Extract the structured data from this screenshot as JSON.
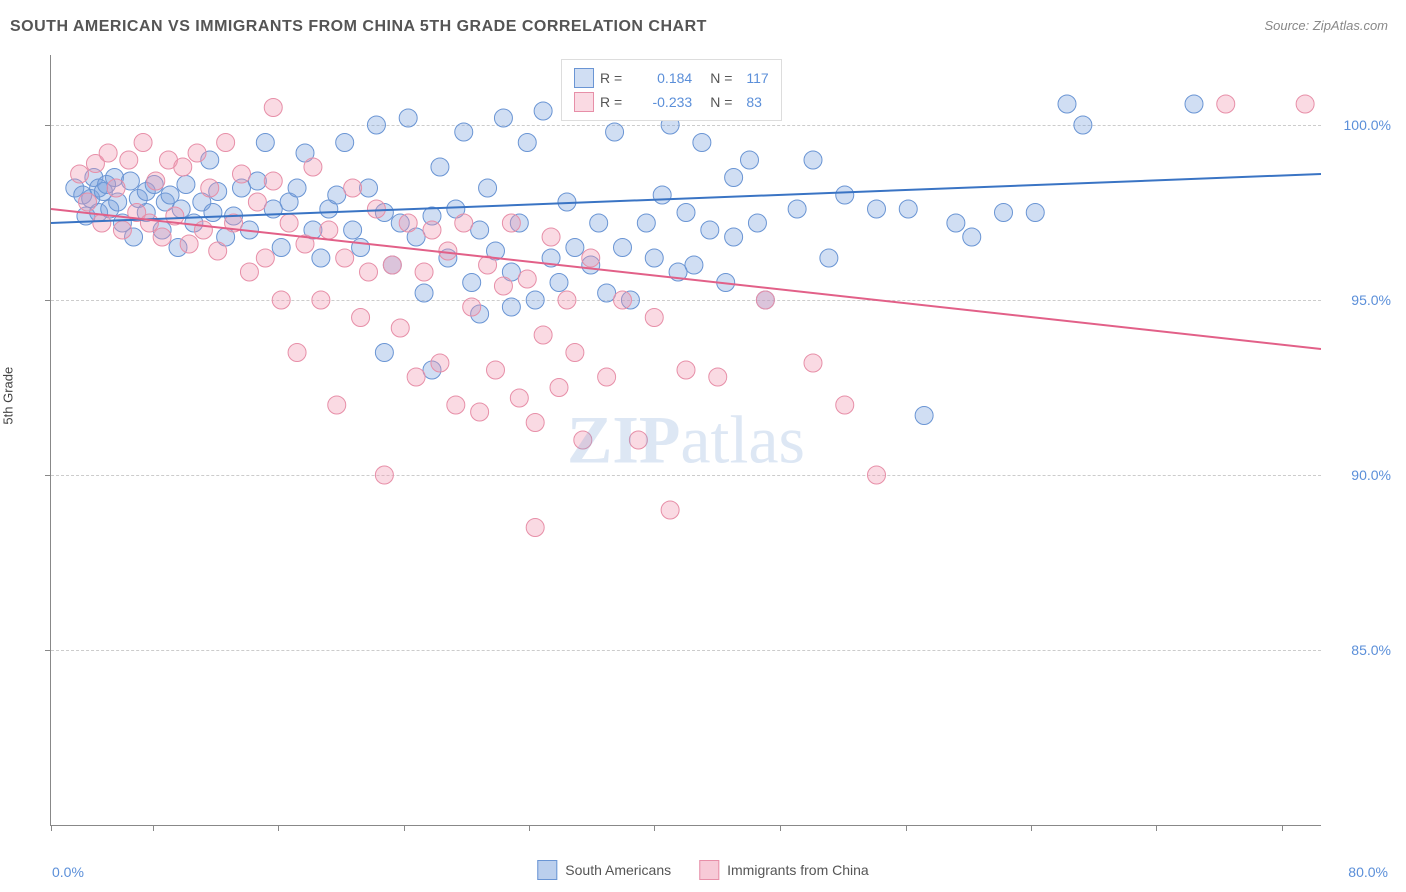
{
  "chart": {
    "type": "scatter",
    "title": "SOUTH AMERICAN VS IMMIGRANTS FROM CHINA 5TH GRADE CORRELATION CHART",
    "source": "Source: ZipAtlas.com",
    "y_axis_label": "5th Grade",
    "watermark": "ZIPatlas",
    "background_color": "#ffffff",
    "grid_color": "#cccccc",
    "axis_color": "#888888",
    "x_axis": {
      "min": 0.0,
      "max": 80.0,
      "tick_positions_pct": [
        0,
        8.0,
        17.9,
        27.8,
        37.6,
        47.5,
        57.4,
        67.3,
        77.2,
        87.0,
        96.9
      ],
      "start_label": "0.0%",
      "end_label": "80.0%",
      "label_color": "#5b8fd9",
      "label_fontsize": 14
    },
    "y_axis": {
      "min": 80.0,
      "max": 102.0,
      "ticks": [
        {
          "value": 100.0,
          "label": "100.0%",
          "pos_pct": 9.1
        },
        {
          "value": 95.0,
          "label": "95.0%",
          "pos_pct": 31.8
        },
        {
          "value": 90.0,
          "label": "90.0%",
          "pos_pct": 54.5
        },
        {
          "value": 85.0,
          "label": "85.0%",
          "pos_pct": 77.3
        }
      ],
      "label_color": "#5b8fd9",
      "label_fontsize": 14
    },
    "series": [
      {
        "name": "South Americans",
        "fill_color": "rgba(120,160,220,0.35)",
        "stroke_color": "#6a95d4",
        "line_color": "#3a74c4",
        "line_width": 2,
        "marker_radius": 9,
        "R": "0.184",
        "N": "117",
        "trend": {
          "y_at_xmin": 97.2,
          "y_at_xmax": 98.6
        },
        "points": [
          [
            1.5,
            98.2
          ],
          [
            2.0,
            98.0
          ],
          [
            2.2,
            97.4
          ],
          [
            2.5,
            97.9
          ],
          [
            2.7,
            98.5
          ],
          [
            3.0,
            98.2
          ],
          [
            3.0,
            97.5
          ],
          [
            3.3,
            98.1
          ],
          [
            3.5,
            98.3
          ],
          [
            3.7,
            97.6
          ],
          [
            4.0,
            98.5
          ],
          [
            4.2,
            97.8
          ],
          [
            4.5,
            97.2
          ],
          [
            5.0,
            98.4
          ],
          [
            5.2,
            96.8
          ],
          [
            5.5,
            97.9
          ],
          [
            6.0,
            98.1
          ],
          [
            6.0,
            97.5
          ],
          [
            6.5,
            98.3
          ],
          [
            7.0,
            97.0
          ],
          [
            7.2,
            97.8
          ],
          [
            7.5,
            98.0
          ],
          [
            8.0,
            96.5
          ],
          [
            8.2,
            97.6
          ],
          [
            8.5,
            98.3
          ],
          [
            9.0,
            97.2
          ],
          [
            9.5,
            97.8
          ],
          [
            10.0,
            99.0
          ],
          [
            10.2,
            97.5
          ],
          [
            10.5,
            98.1
          ],
          [
            11.0,
            96.8
          ],
          [
            11.5,
            97.4
          ],
          [
            12.0,
            98.2
          ],
          [
            12.5,
            97.0
          ],
          [
            13.0,
            98.4
          ],
          [
            13.5,
            99.5
          ],
          [
            14.0,
            97.6
          ],
          [
            14.5,
            96.5
          ],
          [
            15.0,
            97.8
          ],
          [
            15.5,
            98.2
          ],
          [
            16.0,
            99.2
          ],
          [
            16.5,
            97.0
          ],
          [
            17.0,
            96.2
          ],
          [
            17.5,
            97.6
          ],
          [
            18.0,
            98.0
          ],
          [
            18.5,
            99.5
          ],
          [
            19.0,
            97.0
          ],
          [
            19.5,
            96.5
          ],
          [
            20.0,
            98.2
          ],
          [
            20.5,
            100.0
          ],
          [
            21.0,
            97.5
          ],
          [
            21.5,
            96.0
          ],
          [
            22.0,
            97.2
          ],
          [
            22.5,
            100.2
          ],
          [
            23.0,
            96.8
          ],
          [
            23.5,
            95.2
          ],
          [
            24.0,
            97.4
          ],
          [
            24.5,
            98.8
          ],
          [
            25.0,
            96.2
          ],
          [
            25.5,
            97.6
          ],
          [
            26.0,
            99.8
          ],
          [
            26.5,
            95.5
          ],
          [
            27.0,
            97.0
          ],
          [
            27.5,
            98.2
          ],
          [
            28.0,
            96.4
          ],
          [
            28.5,
            100.2
          ],
          [
            29.0,
            95.8
          ],
          [
            29.5,
            97.2
          ],
          [
            30.0,
            99.5
          ],
          [
            30.5,
            95.0
          ],
          [
            31.0,
            100.4
          ],
          [
            31.5,
            96.2
          ],
          [
            32.0,
            95.5
          ],
          [
            32.5,
            97.8
          ],
          [
            33.0,
            96.5
          ],
          [
            33.5,
            100.8
          ],
          [
            34.0,
            96.0
          ],
          [
            34.5,
            97.2
          ],
          [
            35.0,
            95.2
          ],
          [
            35.5,
            99.8
          ],
          [
            36.0,
            96.5
          ],
          [
            36.5,
            95.0
          ],
          [
            37.0,
            100.6
          ],
          [
            37.5,
            97.2
          ],
          [
            38.0,
            96.2
          ],
          [
            38.5,
            98.0
          ],
          [
            39.0,
            100.0
          ],
          [
            39.5,
            95.8
          ],
          [
            40.0,
            97.5
          ],
          [
            40.5,
            96.0
          ],
          [
            41.0,
            99.5
          ],
          [
            41.5,
            97.0
          ],
          [
            42.0,
            100.4
          ],
          [
            42.5,
            95.5
          ],
          [
            43.0,
            96.8
          ],
          [
            43.0,
            98.5
          ],
          [
            44.0,
            99.0
          ],
          [
            44.5,
            97.2
          ],
          [
            45.0,
            95.0
          ],
          [
            47.0,
            97.6
          ],
          [
            48.0,
            99.0
          ],
          [
            49.0,
            96.2
          ],
          [
            50.0,
            98.0
          ],
          [
            52.0,
            97.6
          ],
          [
            54.0,
            97.6
          ],
          [
            55.0,
            91.7
          ],
          [
            57.0,
            97.2
          ],
          [
            58.0,
            96.8
          ],
          [
            60.0,
            97.5
          ],
          [
            62.0,
            97.5
          ],
          [
            64.0,
            100.6
          ],
          [
            65.0,
            100.0
          ],
          [
            72.0,
            100.6
          ],
          [
            21.0,
            93.5
          ],
          [
            24.0,
            93.0
          ],
          [
            27.0,
            94.6
          ],
          [
            29.0,
            94.8
          ]
        ]
      },
      {
        "name": "Immigrants from China",
        "fill_color": "rgba(240,150,175,0.35)",
        "stroke_color": "#e78fa8",
        "line_color": "#e26088",
        "line_width": 2,
        "marker_radius": 9,
        "R": "-0.233",
        "N": "83",
        "trend": {
          "y_at_xmin": 97.6,
          "y_at_xmax": 93.6
        },
        "points": [
          [
            1.8,
            98.6
          ],
          [
            2.3,
            97.8
          ],
          [
            2.8,
            98.9
          ],
          [
            3.2,
            97.2
          ],
          [
            3.6,
            99.2
          ],
          [
            4.1,
            98.2
          ],
          [
            4.5,
            97.0
          ],
          [
            4.9,
            99.0
          ],
          [
            5.4,
            97.5
          ],
          [
            5.8,
            99.5
          ],
          [
            6.2,
            97.2
          ],
          [
            6.6,
            98.4
          ],
          [
            7.0,
            96.8
          ],
          [
            7.4,
            99.0
          ],
          [
            7.8,
            97.4
          ],
          [
            8.3,
            98.8
          ],
          [
            8.7,
            96.6
          ],
          [
            9.2,
            99.2
          ],
          [
            9.6,
            97.0
          ],
          [
            10.0,
            98.2
          ],
          [
            10.5,
            96.4
          ],
          [
            11.0,
            99.5
          ],
          [
            11.5,
            97.2
          ],
          [
            12.0,
            98.6
          ],
          [
            12.5,
            95.8
          ],
          [
            13.0,
            97.8
          ],
          [
            13.5,
            96.2
          ],
          [
            14.0,
            98.4
          ],
          [
            14.5,
            95.0
          ],
          [
            15.0,
            97.2
          ],
          [
            15.5,
            93.5
          ],
          [
            16.0,
            96.6
          ],
          [
            16.5,
            98.8
          ],
          [
            17.0,
            95.0
          ],
          [
            17.5,
            97.0
          ],
          [
            18.0,
            92.0
          ],
          [
            18.5,
            96.2
          ],
          [
            19.0,
            98.2
          ],
          [
            19.5,
            94.5
          ],
          [
            20.0,
            95.8
          ],
          [
            20.5,
            97.6
          ],
          [
            21.0,
            90.0
          ],
          [
            21.5,
            96.0
          ],
          [
            22.0,
            94.2
          ],
          [
            22.5,
            97.2
          ],
          [
            23.0,
            92.8
          ],
          [
            23.5,
            95.8
          ],
          [
            24.0,
            97.0
          ],
          [
            24.5,
            93.2
          ],
          [
            25.0,
            96.4
          ],
          [
            25.5,
            92.0
          ],
          [
            26.0,
            97.2
          ],
          [
            26.5,
            94.8
          ],
          [
            27.0,
            91.8
          ],
          [
            27.5,
            96.0
          ],
          [
            28.0,
            93.0
          ],
          [
            28.5,
            95.4
          ],
          [
            29.0,
            97.2
          ],
          [
            29.5,
            92.2
          ],
          [
            30.0,
            95.6
          ],
          [
            30.5,
            91.5
          ],
          [
            31.0,
            94.0
          ],
          [
            31.5,
            96.8
          ],
          [
            32.0,
            92.5
          ],
          [
            32.5,
            95.0
          ],
          [
            33.0,
            93.5
          ],
          [
            33.5,
            91.0
          ],
          [
            34.0,
            96.2
          ],
          [
            35.0,
            92.8
          ],
          [
            36.0,
            95.0
          ],
          [
            37.0,
            91.0
          ],
          [
            38.0,
            94.5
          ],
          [
            30.5,
            88.5
          ],
          [
            39.0,
            89.0
          ],
          [
            40.0,
            93.0
          ],
          [
            42.0,
            92.8
          ],
          [
            45.0,
            95.0
          ],
          [
            48.0,
            93.2
          ],
          [
            50.0,
            92.0
          ],
          [
            52.0,
            90.0
          ],
          [
            74.0,
            100.6
          ],
          [
            79.0,
            100.6
          ],
          [
            14.0,
            100.5
          ]
        ]
      }
    ],
    "legend_bottom": [
      {
        "label": "South Americans",
        "fill": "rgba(120,160,220,0.5)",
        "stroke": "#6a95d4"
      },
      {
        "label": "Immigrants from China",
        "fill": "rgba(240,150,175,0.5)",
        "stroke": "#e78fa8"
      }
    ]
  }
}
